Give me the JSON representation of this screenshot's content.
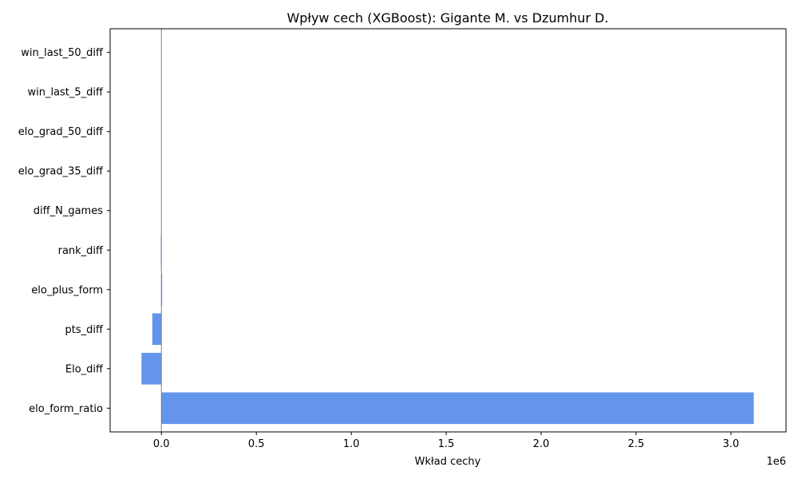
{
  "chart_data": {
    "type": "bar",
    "orientation": "horizontal",
    "title": "Wpływ cech (XGBoost): Gigante M. vs Dzumhur D.",
    "xlabel": "Wkład cechy",
    "ylabel": "",
    "x_scale_label": "1e6",
    "categories": [
      "elo_form_ratio",
      "Elo_diff",
      "pts_diff",
      "elo_plus_form",
      "rank_diff",
      "diff_N_games",
      "elo_grad_35_diff",
      "elo_grad_50_diff",
      "win_last_5_diff",
      "win_last_50_diff"
    ],
    "values": [
      3120000,
      -105000,
      -48000,
      4000,
      -3000,
      0,
      0,
      0,
      0,
      0
    ],
    "xlim": [
      -270000,
      3290000
    ],
    "x_ticks": [
      0,
      500000,
      1000000,
      1500000,
      2000000,
      2500000,
      3000000
    ],
    "x_tick_labels": [
      "0.0",
      "0.5",
      "1.0",
      "1.5",
      "2.0",
      "2.5",
      "3.0"
    ],
    "bar_color": "#6495ED",
    "grid": false,
    "zero_line": true
  }
}
